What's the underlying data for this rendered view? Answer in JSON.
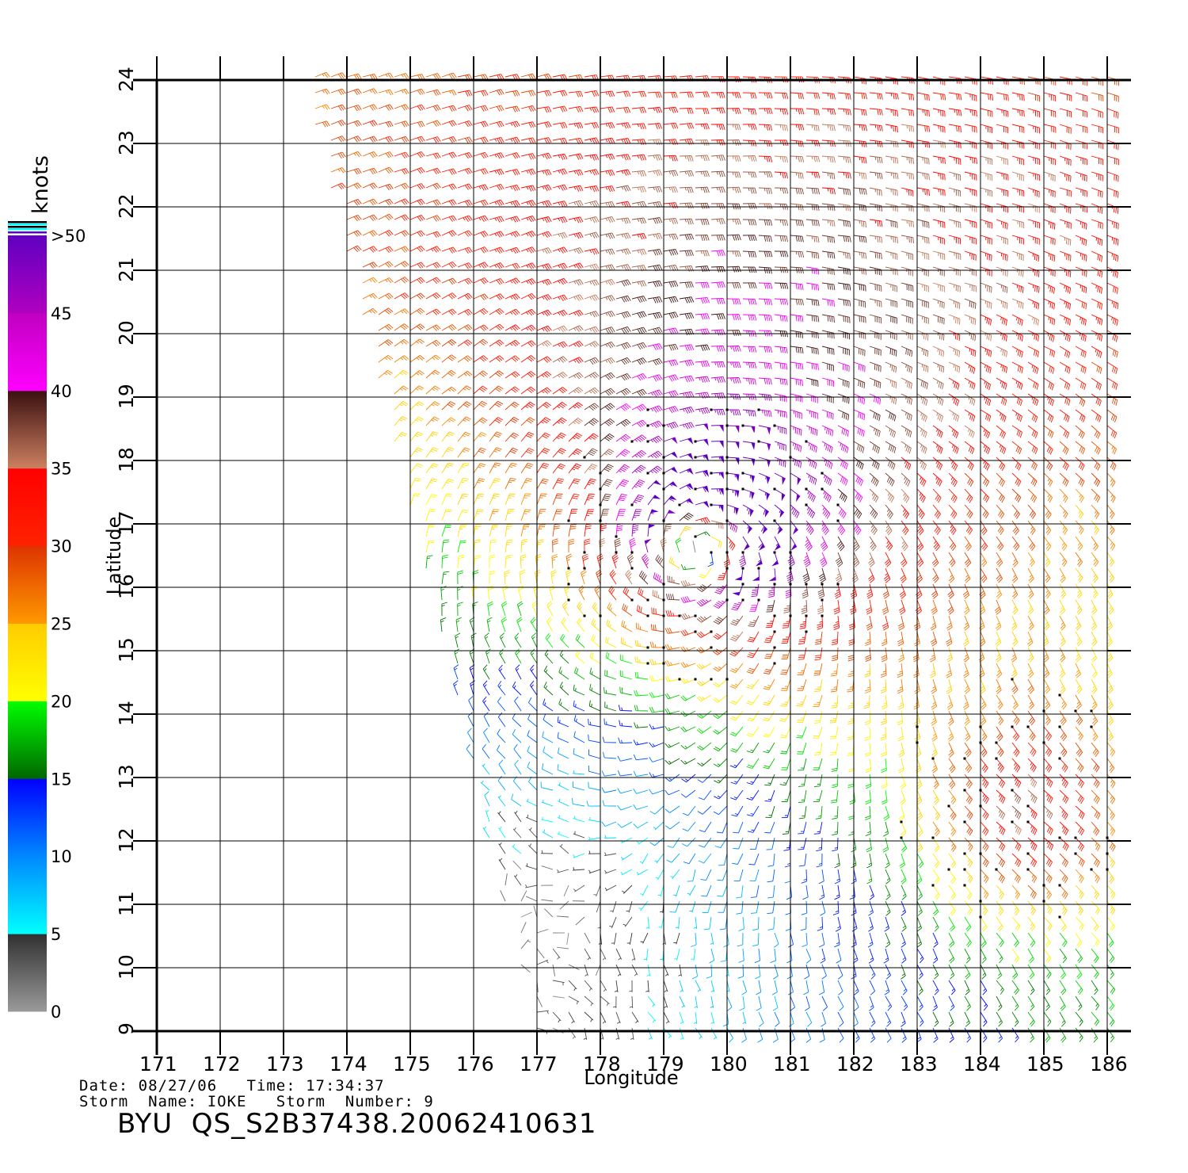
{
  "chart_data": {
    "type": "wind-barb",
    "xlabel": "Longitude",
    "ylabel": "Latitude",
    "xlim": [
      171,
      186.4
    ],
    "ylim": [
      9,
      24
    ],
    "x_ticks": [
      "171",
      "172",
      "173",
      "174",
      "175",
      "176",
      "177",
      "178",
      "179",
      "180",
      "181",
      "182",
      "183",
      "184",
      "185",
      "186"
    ],
    "y_ticks": [
      "9",
      "10",
      "11",
      "12",
      "13",
      "14",
      "15",
      "16",
      "17",
      "18",
      "19",
      "20",
      "21",
      "22",
      "23",
      "24"
    ],
    "grid": true,
    "storm_center": {
      "lon": 179.6,
      "lat": 16.7
    },
    "colorbar": {
      "title": "knots",
      "ticks": [
        "0",
        "5",
        "10",
        "15",
        "20",
        "25",
        "30",
        "35",
        "40",
        "45",
        ">50"
      ],
      "bands": [
        {
          "from": 0,
          "to": 5,
          "colors": [
            "#9a9a9a",
            "#303030"
          ]
        },
        {
          "from": 5,
          "to": 10,
          "colors": [
            "#00ffff",
            "#0088ff"
          ]
        },
        {
          "from": 10,
          "to": 15,
          "colors": [
            "#0088ff",
            "#0000ff"
          ]
        },
        {
          "from": 15,
          "to": 20,
          "colors": [
            "#006600",
            "#00ff00"
          ]
        },
        {
          "from": 20,
          "to": 25,
          "colors": [
            "#ffff00",
            "#ffcc00"
          ]
        },
        {
          "from": 25,
          "to": 30,
          "colors": [
            "#ff9900",
            "#dd3300"
          ]
        },
        {
          "from": 30,
          "to": 35,
          "colors": [
            "#ff2200",
            "#ff0000"
          ]
        },
        {
          "from": 35,
          "to": 40,
          "colors": [
            "#cc8060",
            "#3a1010"
          ]
        },
        {
          "from": 40,
          "to": 45,
          "colors": [
            "#ff00ff",
            "#c000c0"
          ]
        },
        {
          "from": 45,
          "to": 50,
          "colors": [
            "#b000c0",
            "#6000c0"
          ]
        }
      ]
    }
  },
  "footer": {
    "date_line": "Date: 08/27/06   Time: 17:34:37",
    "storm_line": "Storm  Name: IOKE   Storm  Number: 9",
    "product": "BYU  QS_S2B37438.20062410631"
  }
}
